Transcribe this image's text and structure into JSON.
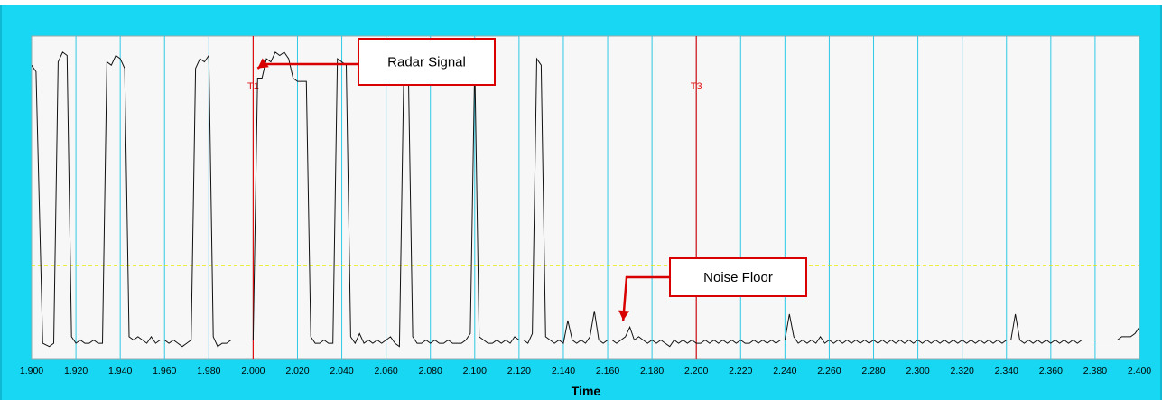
{
  "chart_data": {
    "type": "line",
    "title": "",
    "xlabel": "Time",
    "ylabel": "",
    "xlim": [
      1.9,
      2.4
    ],
    "ylim": [
      0,
      1
    ],
    "grid": "vertical",
    "x_ticks": [
      "1.900",
      "1.920",
      "1.940",
      "1.960",
      "1.980",
      "2.000",
      "2.020",
      "2.040",
      "2.060",
      "2.080",
      "2.100",
      "2.120",
      "2.140",
      "2.160",
      "2.180",
      "2.200",
      "2.220",
      "2.240",
      "2.260",
      "2.280",
      "2.300",
      "2.320",
      "2.340",
      "2.360",
      "2.380",
      "2.400"
    ],
    "threshold": 0.29,
    "cursors": [
      {
        "label": "T1",
        "x": 2.0
      },
      {
        "label": "T3",
        "x": 2.2
      }
    ],
    "annotations": [
      {
        "text": "Radar Signal",
        "target_x": 2.002,
        "target_y": 0.9
      },
      {
        "text": "Noise Floor",
        "target_x": 2.167,
        "target_y": 0.12
      }
    ],
    "series": [
      {
        "values": [
          [
            1.9,
            0.91
          ],
          [
            1.902,
            0.89
          ],
          [
            1.905,
            0.05
          ],
          [
            1.908,
            0.04
          ],
          [
            1.91,
            0.05
          ],
          [
            1.912,
            0.92
          ],
          [
            1.914,
            0.95
          ],
          [
            1.916,
            0.94
          ],
          [
            1.918,
            0.07
          ],
          [
            1.92,
            0.05
          ],
          [
            1.922,
            0.06
          ],
          [
            1.924,
            0.05
          ],
          [
            1.926,
            0.05
          ],
          [
            1.928,
            0.06
          ],
          [
            1.93,
            0.05
          ],
          [
            1.932,
            0.05
          ],
          [
            1.934,
            0.92
          ],
          [
            1.936,
            0.91
          ],
          [
            1.938,
            0.94
          ],
          [
            1.94,
            0.93
          ],
          [
            1.942,
            0.9
          ],
          [
            1.944,
            0.07
          ],
          [
            1.946,
            0.06
          ],
          [
            1.948,
            0.07
          ],
          [
            1.95,
            0.06
          ],
          [
            1.952,
            0.05
          ],
          [
            1.954,
            0.07
          ],
          [
            1.956,
            0.05
          ],
          [
            1.958,
            0.06
          ],
          [
            1.96,
            0.06
          ],
          [
            1.962,
            0.05
          ],
          [
            1.964,
            0.06
          ],
          [
            1.966,
            0.05
          ],
          [
            1.968,
            0.04
          ],
          [
            1.97,
            0.05
          ],
          [
            1.972,
            0.06
          ],
          [
            1.974,
            0.9
          ],
          [
            1.976,
            0.93
          ],
          [
            1.978,
            0.92
          ],
          [
            1.98,
            0.94
          ],
          [
            1.982,
            0.07
          ],
          [
            1.984,
            0.04
          ],
          [
            1.986,
            0.05
          ],
          [
            1.988,
            0.05
          ],
          [
            1.99,
            0.06
          ],
          [
            1.992,
            0.06
          ],
          [
            1.994,
            0.06
          ],
          [
            1.996,
            0.06
          ],
          [
            1.998,
            0.06
          ],
          [
            2.0,
            0.06
          ],
          [
            2.002,
            0.87
          ],
          [
            2.004,
            0.87
          ],
          [
            2.006,
            0.93
          ],
          [
            2.008,
            0.92
          ],
          [
            2.01,
            0.95
          ],
          [
            2.012,
            0.94
          ],
          [
            2.014,
            0.95
          ],
          [
            2.016,
            0.93
          ],
          [
            2.018,
            0.87
          ],
          [
            2.02,
            0.86
          ],
          [
            2.022,
            0.86
          ],
          [
            2.024,
            0.86
          ],
          [
            2.026,
            0.07
          ],
          [
            2.028,
            0.05
          ],
          [
            2.03,
            0.05
          ],
          [
            2.032,
            0.06
          ],
          [
            2.034,
            0.05
          ],
          [
            2.036,
            0.05
          ],
          [
            2.038,
            0.93
          ],
          [
            2.04,
            0.92
          ],
          [
            2.042,
            0.91
          ],
          [
            2.044,
            0.07
          ],
          [
            2.046,
            0.05
          ],
          [
            2.048,
            0.08
          ],
          [
            2.05,
            0.05
          ],
          [
            2.052,
            0.06
          ],
          [
            2.054,
            0.05
          ],
          [
            2.056,
            0.06
          ],
          [
            2.058,
            0.05
          ],
          [
            2.06,
            0.06
          ],
          [
            2.062,
            0.07
          ],
          [
            2.064,
            0.05
          ],
          [
            2.066,
            0.04
          ],
          [
            2.068,
            0.9
          ],
          [
            2.07,
            0.91
          ],
          [
            2.072,
            0.07
          ],
          [
            2.074,
            0.05
          ],
          [
            2.076,
            0.05
          ],
          [
            2.078,
            0.06
          ],
          [
            2.08,
            0.05
          ],
          [
            2.082,
            0.06
          ],
          [
            2.084,
            0.05
          ],
          [
            2.086,
            0.05
          ],
          [
            2.088,
            0.06
          ],
          [
            2.09,
            0.05
          ],
          [
            2.092,
            0.05
          ],
          [
            2.094,
            0.05
          ],
          [
            2.096,
            0.06
          ],
          [
            2.098,
            0.08
          ],
          [
            2.1,
            0.92
          ],
          [
            2.102,
            0.07
          ],
          [
            2.104,
            0.06
          ],
          [
            2.106,
            0.05
          ],
          [
            2.108,
            0.05
          ],
          [
            2.11,
            0.06
          ],
          [
            2.112,
            0.05
          ],
          [
            2.114,
            0.06
          ],
          [
            2.116,
            0.05
          ],
          [
            2.118,
            0.07
          ],
          [
            2.12,
            0.06
          ],
          [
            2.122,
            0.06
          ],
          [
            2.124,
            0.05
          ],
          [
            2.126,
            0.08
          ],
          [
            2.128,
            0.93
          ],
          [
            2.13,
            0.91
          ],
          [
            2.132,
            0.07
          ],
          [
            2.134,
            0.06
          ],
          [
            2.136,
            0.05
          ],
          [
            2.138,
            0.06
          ],
          [
            2.14,
            0.05
          ],
          [
            2.142,
            0.12
          ],
          [
            2.144,
            0.06
          ],
          [
            2.146,
            0.05
          ],
          [
            2.148,
            0.06
          ],
          [
            2.15,
            0.05
          ],
          [
            2.152,
            0.07
          ],
          [
            2.154,
            0.15
          ],
          [
            2.156,
            0.06
          ],
          [
            2.158,
            0.05
          ],
          [
            2.16,
            0.06
          ],
          [
            2.162,
            0.06
          ],
          [
            2.164,
            0.05
          ],
          [
            2.166,
            0.06
          ],
          [
            2.168,
            0.07
          ],
          [
            2.17,
            0.1
          ],
          [
            2.172,
            0.06
          ],
          [
            2.174,
            0.07
          ],
          [
            2.176,
            0.06
          ],
          [
            2.178,
            0.05
          ],
          [
            2.18,
            0.06
          ],
          [
            2.182,
            0.05
          ],
          [
            2.184,
            0.06
          ],
          [
            2.186,
            0.05
          ],
          [
            2.188,
            0.04
          ],
          [
            2.19,
            0.06
          ],
          [
            2.192,
            0.05
          ],
          [
            2.194,
            0.06
          ],
          [
            2.196,
            0.05
          ],
          [
            2.198,
            0.06
          ],
          [
            2.2,
            0.05
          ],
          [
            2.202,
            0.05
          ],
          [
            2.204,
            0.06
          ],
          [
            2.206,
            0.05
          ],
          [
            2.208,
            0.06
          ],
          [
            2.21,
            0.05
          ],
          [
            2.212,
            0.06
          ],
          [
            2.214,
            0.05
          ],
          [
            2.216,
            0.06
          ],
          [
            2.218,
            0.05
          ],
          [
            2.22,
            0.06
          ],
          [
            2.222,
            0.05
          ],
          [
            2.224,
            0.05
          ],
          [
            2.226,
            0.06
          ],
          [
            2.228,
            0.05
          ],
          [
            2.23,
            0.06
          ],
          [
            2.232,
            0.05
          ],
          [
            2.234,
            0.06
          ],
          [
            2.236,
            0.05
          ],
          [
            2.238,
            0.06
          ],
          [
            2.24,
            0.06
          ],
          [
            2.242,
            0.14
          ],
          [
            2.244,
            0.07
          ],
          [
            2.246,
            0.05
          ],
          [
            2.248,
            0.06
          ],
          [
            2.25,
            0.05
          ],
          [
            2.252,
            0.06
          ],
          [
            2.254,
            0.05
          ],
          [
            2.256,
            0.07
          ],
          [
            2.258,
            0.05
          ],
          [
            2.26,
            0.06
          ],
          [
            2.262,
            0.05
          ],
          [
            2.264,
            0.06
          ],
          [
            2.266,
            0.05
          ],
          [
            2.268,
            0.06
          ],
          [
            2.27,
            0.05
          ],
          [
            2.272,
            0.06
          ],
          [
            2.274,
            0.05
          ],
          [
            2.276,
            0.06
          ],
          [
            2.278,
            0.05
          ],
          [
            2.28,
            0.06
          ],
          [
            2.282,
            0.05
          ],
          [
            2.284,
            0.06
          ],
          [
            2.286,
            0.05
          ],
          [
            2.288,
            0.06
          ],
          [
            2.29,
            0.05
          ],
          [
            2.292,
            0.06
          ],
          [
            2.294,
            0.05
          ],
          [
            2.296,
            0.06
          ],
          [
            2.298,
            0.05
          ],
          [
            2.3,
            0.06
          ],
          [
            2.302,
            0.05
          ],
          [
            2.304,
            0.06
          ],
          [
            2.306,
            0.05
          ],
          [
            2.308,
            0.06
          ],
          [
            2.31,
            0.05
          ],
          [
            2.312,
            0.06
          ],
          [
            2.314,
            0.05
          ],
          [
            2.316,
            0.06
          ],
          [
            2.318,
            0.05
          ],
          [
            2.32,
            0.06
          ],
          [
            2.322,
            0.05
          ],
          [
            2.324,
            0.06
          ],
          [
            2.326,
            0.05
          ],
          [
            2.328,
            0.06
          ],
          [
            2.33,
            0.05
          ],
          [
            2.332,
            0.06
          ],
          [
            2.334,
            0.05
          ],
          [
            2.336,
            0.06
          ],
          [
            2.338,
            0.05
          ],
          [
            2.34,
            0.06
          ],
          [
            2.342,
            0.06
          ],
          [
            2.344,
            0.14
          ],
          [
            2.346,
            0.06
          ],
          [
            2.348,
            0.05
          ],
          [
            2.35,
            0.06
          ],
          [
            2.352,
            0.05
          ],
          [
            2.354,
            0.06
          ],
          [
            2.356,
            0.05
          ],
          [
            2.358,
            0.06
          ],
          [
            2.36,
            0.05
          ],
          [
            2.362,
            0.06
          ],
          [
            2.364,
            0.05
          ],
          [
            2.366,
            0.06
          ],
          [
            2.368,
            0.05
          ],
          [
            2.37,
            0.06
          ],
          [
            2.372,
            0.05
          ],
          [
            2.374,
            0.06
          ],
          [
            2.376,
            0.06
          ],
          [
            2.378,
            0.06
          ],
          [
            2.38,
            0.06
          ],
          [
            2.382,
            0.06
          ],
          [
            2.384,
            0.06
          ],
          [
            2.386,
            0.06
          ],
          [
            2.388,
            0.06
          ],
          [
            2.39,
            0.06
          ],
          [
            2.392,
            0.07
          ],
          [
            2.394,
            0.07
          ],
          [
            2.396,
            0.07
          ],
          [
            2.398,
            0.08
          ],
          [
            2.4,
            0.1
          ]
        ]
      }
    ]
  },
  "colors": {
    "frame": "#17d7f2",
    "plot_bg": "#f7f7f7",
    "grid": "#2ec9e6",
    "signal": "#111111",
    "cursor": "#e01010",
    "threshold": "#e8e800",
    "callout_border": "#d80000",
    "callout_arrow": "#d80000"
  }
}
